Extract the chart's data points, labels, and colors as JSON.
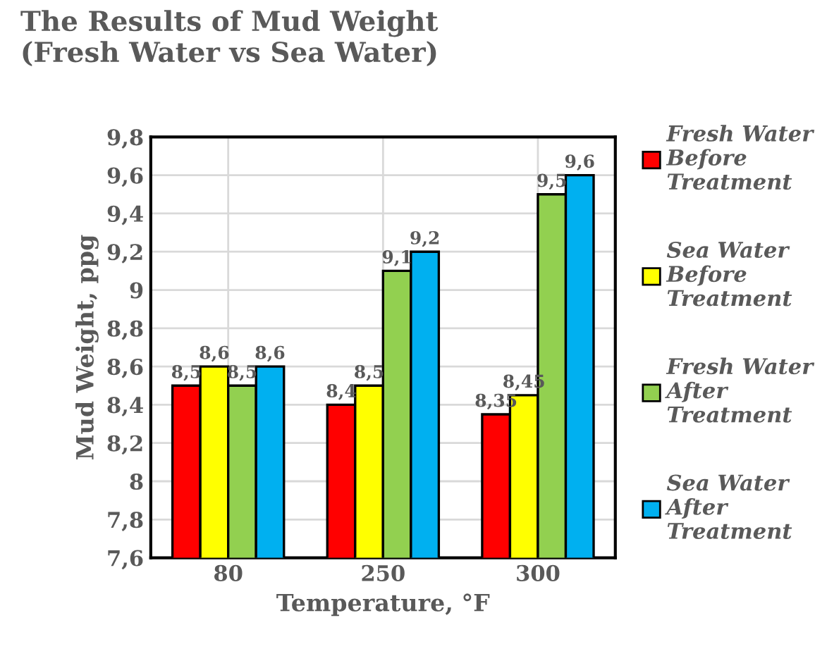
{
  "chart_data": {
    "type": "bar",
    "title": "The Results of Mud Weight\n(Fresh Water vs Sea Water)",
    "xlabel": "Temperature, °F",
    "ylabel": "Mud Weight, ppg",
    "categories": [
      "80",
      "250",
      "300"
    ],
    "series": [
      {
        "name": "Fresh Water\nBefore\nTreatment",
        "color": "#ff0000",
        "values": [
          8.5,
          8.4,
          8.35
        ],
        "value_labels": [
          "8,5",
          "8,4",
          "8,35"
        ]
      },
      {
        "name": "Sea Water\nBefore\nTreatment",
        "color": "#ffff00",
        "values": [
          8.6,
          8.5,
          8.45
        ],
        "value_labels": [
          "8,6",
          "8,5",
          "8,45"
        ]
      },
      {
        "name": "Fresh Water\nAfter\nTreatment",
        "color": "#92d050",
        "values": [
          8.5,
          9.1,
          9.5
        ],
        "value_labels": [
          "8,5",
          "9,1",
          "9,5"
        ]
      },
      {
        "name": "Sea Water\nAfter\nTreatment",
        "color": "#00b0f0",
        "values": [
          8.6,
          9.2,
          9.6
        ],
        "value_labels": [
          "8,6",
          "9,2",
          "9,6"
        ]
      }
    ],
    "ylim": [
      7.6,
      9.8
    ],
    "yticks": [
      {
        "value": 7.6,
        "label": "7,6"
      },
      {
        "value": 7.8,
        "label": "7,8"
      },
      8,
      {
        "value": 8.2,
        "label": "8,2"
      },
      {
        "value": 8.4,
        "label": "8,4"
      },
      {
        "value": 8.6,
        "label": "8,6"
      },
      {
        "value": 8.8,
        "label": "8,8"
      },
      9,
      {
        "value": 9.2,
        "label": "9,2"
      },
      {
        "value": 9.4,
        "label": "9,4"
      },
      {
        "value": 9.6,
        "label": "9,6"
      },
      {
        "value": 9.8,
        "label": "9,8"
      }
    ],
    "grid": true,
    "legend": "right"
  }
}
